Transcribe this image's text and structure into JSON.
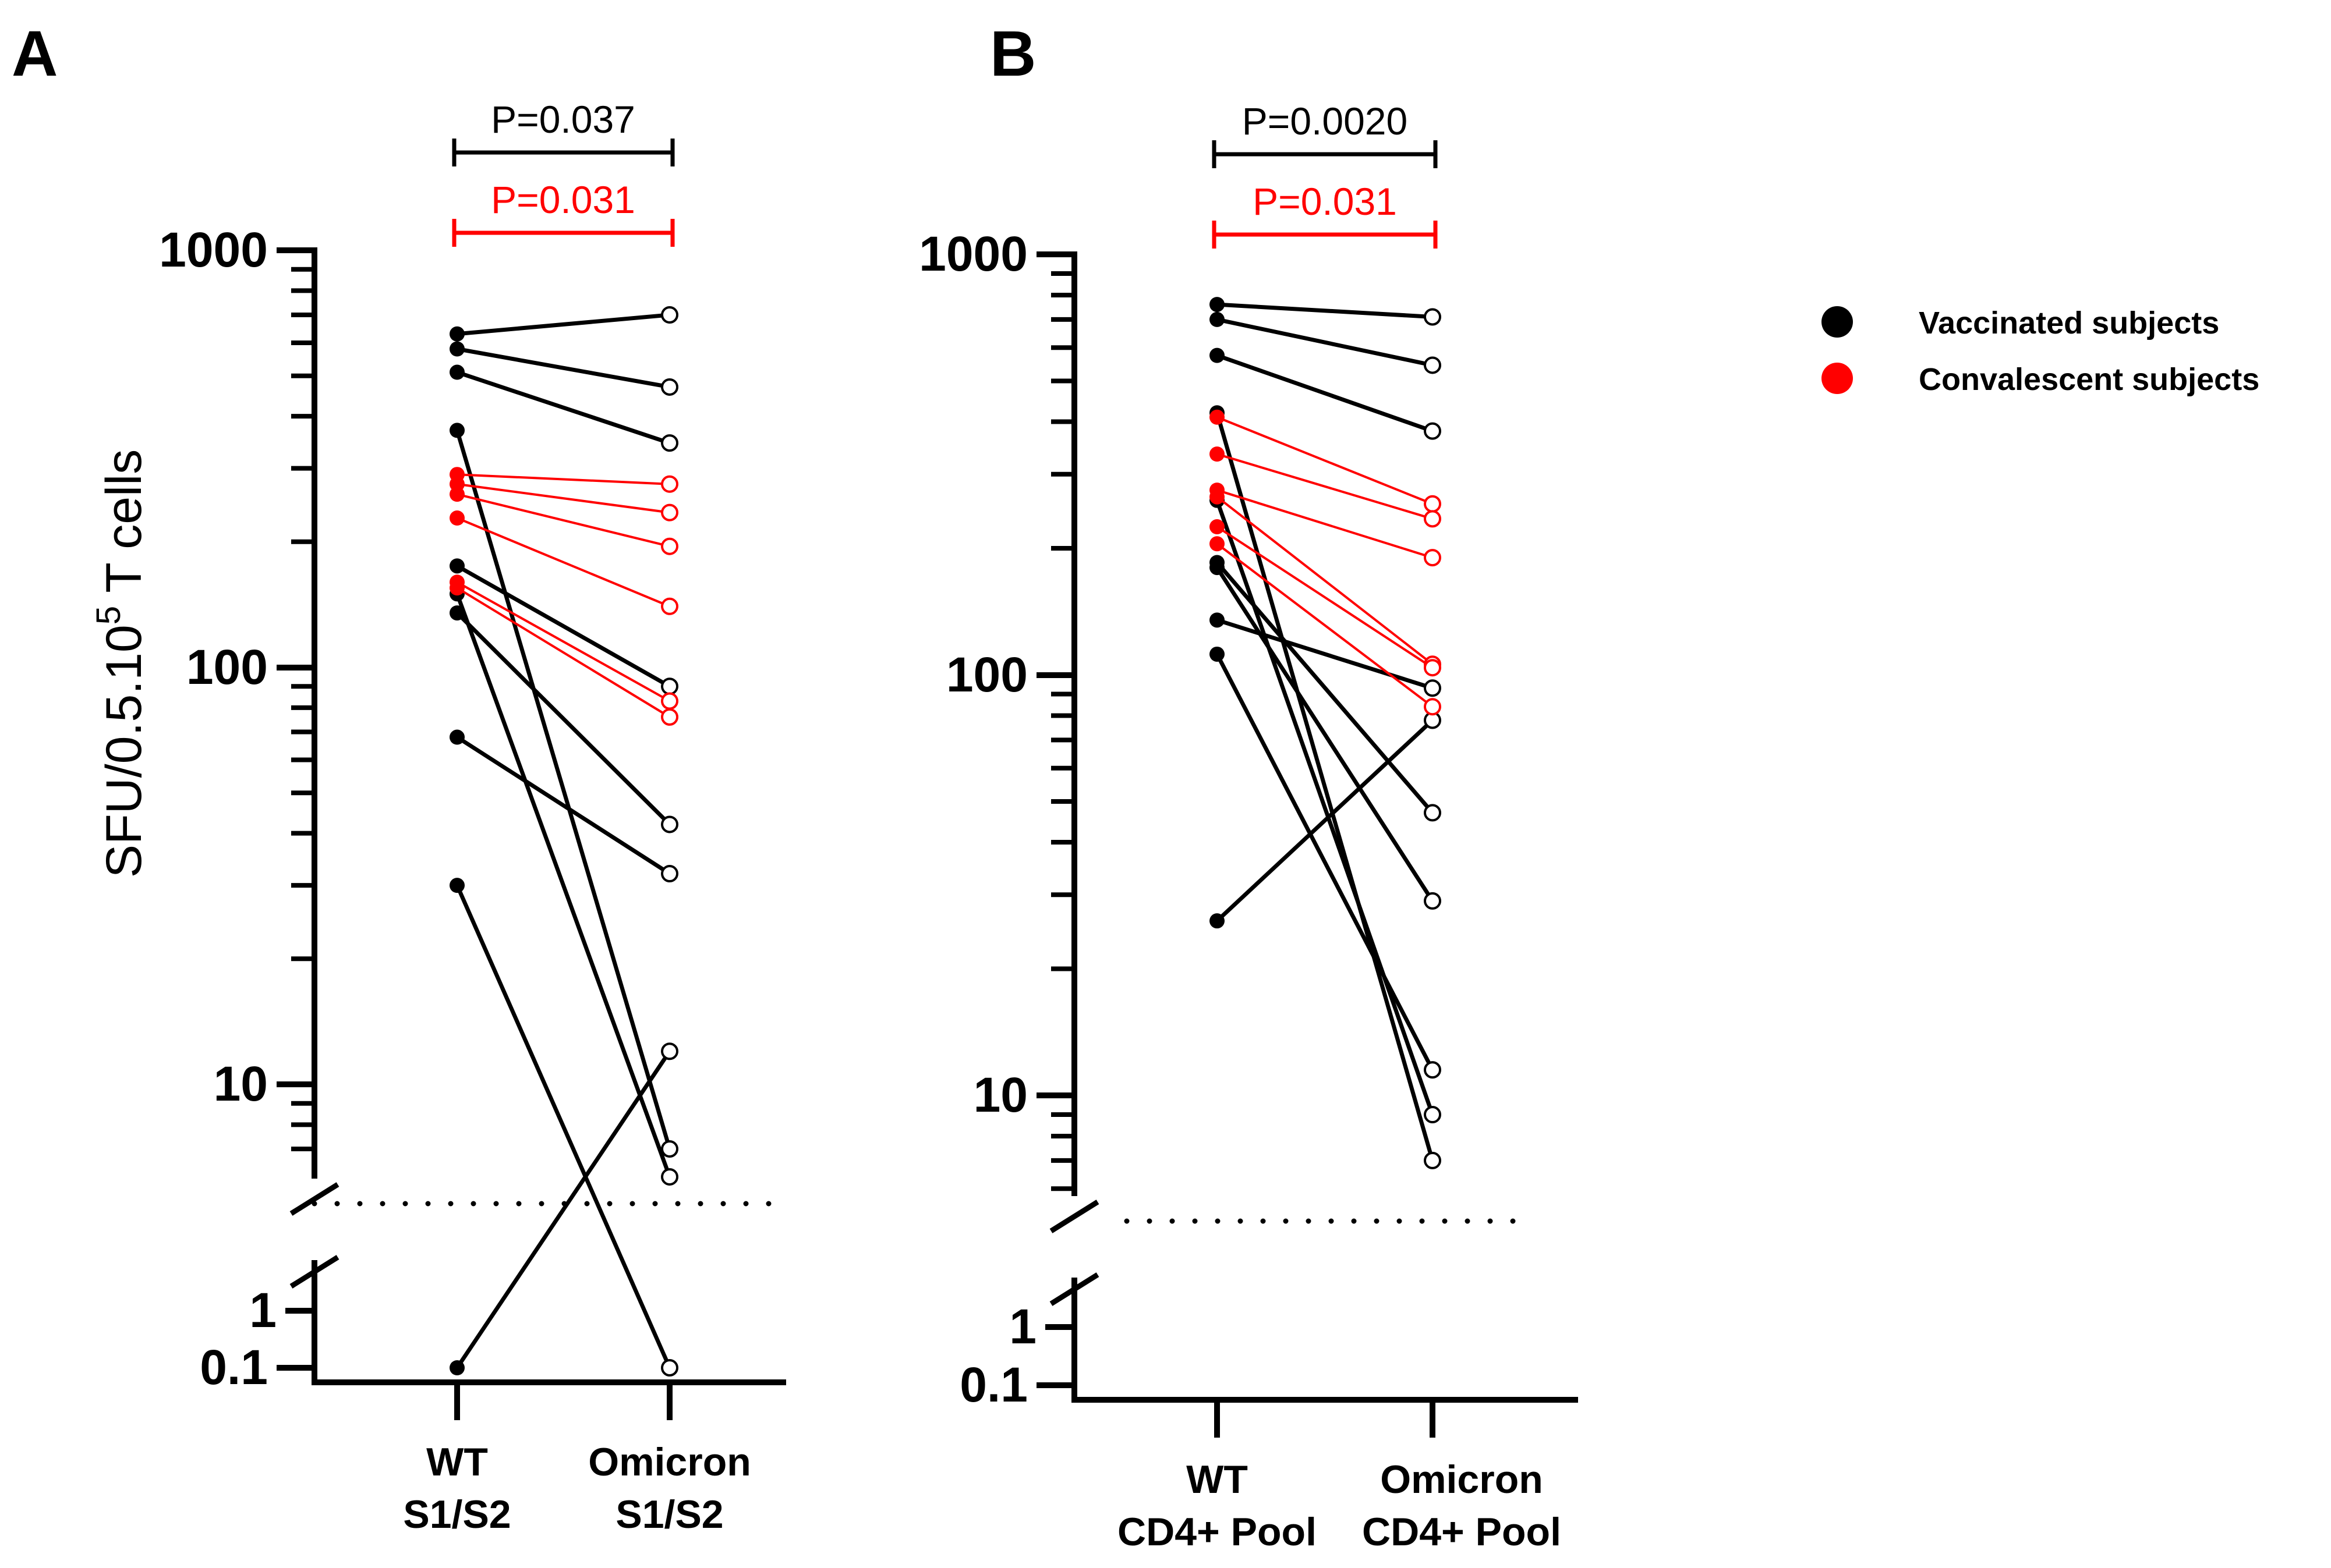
{
  "colors": {
    "vaccinated": "#000000",
    "convalescent": "#ff0000"
  },
  "legend": [
    {
      "label": "Vaccinated subjects",
      "color": "#000000"
    },
    {
      "label": "Convalescent subjects",
      "color": "#ff0000"
    }
  ],
  "chart_data": [
    {
      "type": "scatter",
      "panel_letter": "A",
      "ylabel": "SFU/0.5.10",
      "ylabel_sup": "5",
      "ylabel_suffix": " T cells",
      "yscale": "log (broken axis)",
      "ylim": [
        0.1,
        1000
      ],
      "y_upper_ticks": [
        "10",
        "100",
        "1000"
      ],
      "y_lower_ticks": [
        "0.1",
        "1"
      ],
      "detection_limit": 5,
      "categories": [
        {
          "line1": "WT",
          "line2": "S1/S2"
        },
        {
          "line1": "Omicron",
          "line2": "S1/S2"
        }
      ],
      "p_values": [
        {
          "label": "P=0.037",
          "group": "vaccinated"
        },
        {
          "label": "P=0.031",
          "group": "convalescent"
        }
      ],
      "pairs": [
        {
          "group": "vaccinated",
          "wt": 630,
          "omicron": 700
        },
        {
          "group": "vaccinated",
          "wt": 580,
          "omicron": 470
        },
        {
          "group": "vaccinated",
          "wt": 510,
          "omicron": 345
        },
        {
          "group": "vaccinated",
          "wt": 370,
          "omicron": 7
        },
        {
          "group": "vaccinated",
          "wt": 175,
          "omicron": 90
        },
        {
          "group": "vaccinated",
          "wt": 150,
          "omicron": 6
        },
        {
          "group": "vaccinated",
          "wt": 135,
          "omicron": 42
        },
        {
          "group": "vaccinated",
          "wt": 68,
          "omicron": 32
        },
        {
          "group": "vaccinated",
          "wt": 30,
          "omicron": 0.1
        },
        {
          "group": "vaccinated",
          "wt": 0.1,
          "omicron": 12
        },
        {
          "group": "convalescent",
          "wt": 290,
          "omicron": 275
        },
        {
          "group": "convalescent",
          "wt": 275,
          "omicron": 235
        },
        {
          "group": "convalescent",
          "wt": 260,
          "omicron": 195
        },
        {
          "group": "convalescent",
          "wt": 228,
          "omicron": 140
        },
        {
          "group": "convalescent",
          "wt": 160,
          "omicron": 83
        },
        {
          "group": "convalescent",
          "wt": 155,
          "omicron": 76
        }
      ]
    },
    {
      "type": "scatter",
      "panel_letter": "B",
      "yscale": "log (broken axis)",
      "ylim": [
        0.1,
        1000
      ],
      "y_upper_ticks": [
        "10",
        "100",
        "1000"
      ],
      "y_lower_ticks": [
        "0.1",
        "1"
      ],
      "detection_limit": 5,
      "categories": [
        {
          "line1": "WT",
          "line2": "CD4+ Pool"
        },
        {
          "line1": "Omicron",
          "line2": "CD4+ Pool"
        }
      ],
      "p_values": [
        {
          "label": "P=0.0020",
          "group": "vaccinated"
        },
        {
          "label": "P=0.031",
          "group": "convalescent"
        }
      ],
      "pairs": [
        {
          "group": "vaccinated",
          "wt": 760,
          "omicron": 710
        },
        {
          "group": "vaccinated",
          "wt": 700,
          "omicron": 545
        },
        {
          "group": "vaccinated",
          "wt": 575,
          "omicron": 380
        },
        {
          "group": "vaccinated",
          "wt": 420,
          "omicron": 7
        },
        {
          "group": "vaccinated",
          "wt": 260,
          "omicron": 9
        },
        {
          "group": "vaccinated",
          "wt": 185,
          "omicron": 47
        },
        {
          "group": "vaccinated",
          "wt": 180,
          "omicron": 29
        },
        {
          "group": "vaccinated",
          "wt": 135,
          "omicron": 93
        },
        {
          "group": "vaccinated",
          "wt": 112,
          "omicron": 11.5
        },
        {
          "group": "vaccinated",
          "wt": 26,
          "omicron": 78
        },
        {
          "group": "convalescent",
          "wt": 410,
          "omicron": 255
        },
        {
          "group": "convalescent",
          "wt": 335,
          "omicron": 235
        },
        {
          "group": "convalescent",
          "wt": 275,
          "omicron": 190
        },
        {
          "group": "convalescent",
          "wt": 265,
          "omicron": 106
        },
        {
          "group": "convalescent",
          "wt": 225,
          "omicron": 104
        },
        {
          "group": "convalescent",
          "wt": 205,
          "omicron": 84
        }
      ]
    }
  ]
}
